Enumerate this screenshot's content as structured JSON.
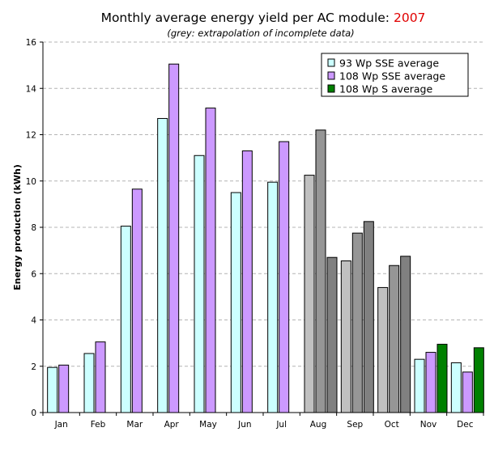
{
  "chart_data": {
    "type": "bar",
    "title": "Monthly average energy yield per AC module: ",
    "title_year": "2007",
    "subtitle": "(grey: extrapolation of incomplete data)",
    "ylabel": "Energy production (kWh)",
    "xlabel": "",
    "ylim": [
      0,
      16
    ],
    "yticks": [
      0,
      2,
      4,
      6,
      8,
      10,
      12,
      14,
      16
    ],
    "grid": "horizontal dashed",
    "legend_position": "top-right",
    "categories": [
      "Jan",
      "Feb",
      "Mar",
      "Apr",
      "May",
      "Jun",
      "Jul",
      "Aug",
      "Sep",
      "Oct",
      "Nov",
      "Dec"
    ],
    "series": [
      {
        "name": "93 Wp SSE average",
        "color": "#ccffff",
        "values": [
          1.95,
          2.55,
          8.05,
          12.7,
          11.1,
          9.5,
          9.95,
          10.25,
          6.55,
          5.4,
          2.3,
          2.15
        ]
      },
      {
        "name": "108 Wp SSE average",
        "color": "#cc99ff",
        "values": [
          2.05,
          3.05,
          9.65,
          15.05,
          13.15,
          11.3,
          11.7,
          12.2,
          7.75,
          6.35,
          2.6,
          1.75
        ]
      },
      {
        "name": "108 Wp S average",
        "color": "#008000",
        "values": [
          null,
          null,
          null,
          null,
          null,
          null,
          null,
          6.7,
          8.25,
          6.75,
          2.95,
          2.8
        ]
      }
    ],
    "extrapolated_months": [
      "Aug",
      "Sep",
      "Oct"
    ],
    "extrapolated_colors": [
      "#c0c0c0",
      "#969696",
      "#808080"
    ]
  }
}
